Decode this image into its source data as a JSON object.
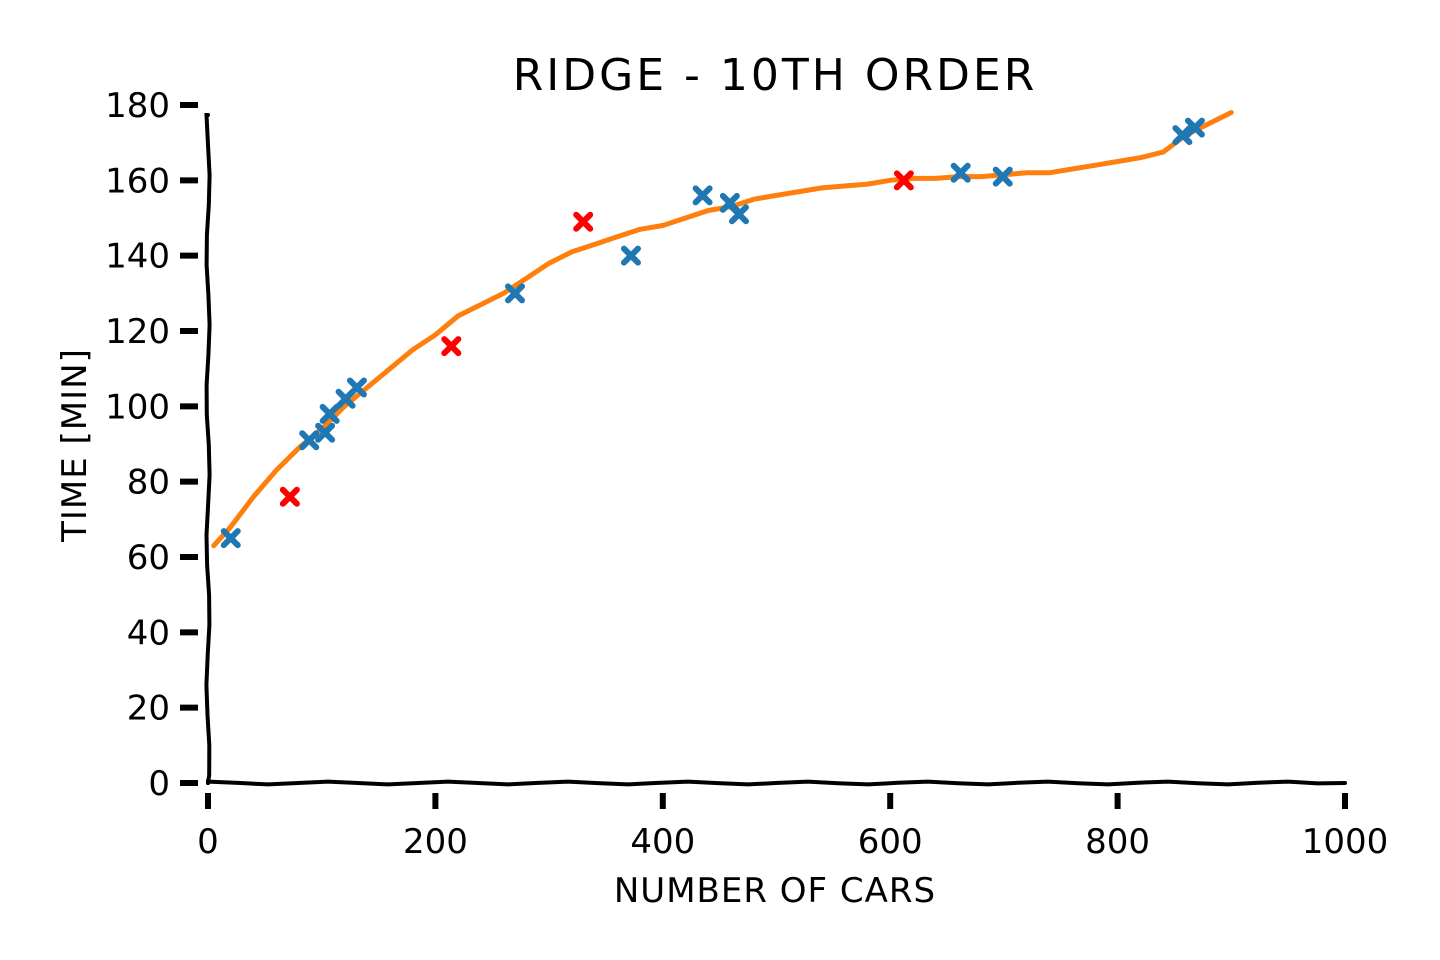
{
  "chart_data": {
    "type": "scatter",
    "title": "RIDGE - 10TH ORDER",
    "xlabel": "NUMBER OF CARS",
    "ylabel": "TIME [MIN]",
    "xlim": [
      0,
      1000
    ],
    "ylim": [
      0,
      180
    ],
    "xticks": [
      0,
      200,
      400,
      600,
      800,
      1000
    ],
    "yticks": [
      0,
      20,
      40,
      60,
      80,
      100,
      120,
      140,
      160,
      180
    ],
    "grid": false,
    "series": [
      {
        "marker": "x",
        "color": "#1f77b4",
        "points": [
          [
            20,
            65
          ],
          [
            89,
            91
          ],
          [
            103,
            93
          ],
          [
            107,
            98
          ],
          [
            121,
            102
          ],
          [
            131,
            105
          ],
          [
            270,
            130
          ],
          [
            372,
            140
          ],
          [
            435,
            156
          ],
          [
            459,
            154
          ],
          [
            467,
            151
          ],
          [
            662,
            162
          ],
          [
            699,
            161
          ],
          [
            857,
            172
          ],
          [
            868,
            174
          ]
        ]
      },
      {
        "marker": "x",
        "color": "#ff0000",
        "points": [
          [
            72,
            76
          ],
          [
            214,
            116
          ],
          [
            330,
            149
          ],
          [
            612,
            160
          ]
        ]
      },
      {
        "marker": "line",
        "color": "#ff7f0e",
        "points": [
          [
            5,
            63
          ],
          [
            20,
            68
          ],
          [
            40,
            76
          ],
          [
            60,
            83
          ],
          [
            80,
            89
          ],
          [
            100,
            94
          ],
          [
            120,
            100
          ],
          [
            140,
            105
          ],
          [
            160,
            110
          ],
          [
            180,
            115
          ],
          [
            200,
            119
          ],
          [
            220,
            124
          ],
          [
            240,
            127
          ],
          [
            260,
            130
          ],
          [
            280,
            134
          ],
          [
            300,
            138
          ],
          [
            320,
            141
          ],
          [
            340,
            143
          ],
          [
            360,
            145
          ],
          [
            380,
            147
          ],
          [
            400,
            148
          ],
          [
            420,
            150
          ],
          [
            440,
            152
          ],
          [
            460,
            153
          ],
          [
            480,
            155
          ],
          [
            500,
            156
          ],
          [
            520,
            157
          ],
          [
            540,
            158
          ],
          [
            560,
            158.5
          ],
          [
            580,
            159
          ],
          [
            600,
            160
          ],
          [
            620,
            160.5
          ],
          [
            640,
            160.5
          ],
          [
            660,
            161
          ],
          [
            680,
            161
          ],
          [
            700,
            161.5
          ],
          [
            720,
            162
          ],
          [
            740,
            162
          ],
          [
            760,
            163
          ],
          [
            780,
            164
          ],
          [
            800,
            165
          ],
          [
            820,
            166
          ],
          [
            840,
            167.5
          ],
          [
            860,
            172
          ],
          [
            880,
            175
          ],
          [
            900,
            178
          ]
        ]
      }
    ]
  }
}
